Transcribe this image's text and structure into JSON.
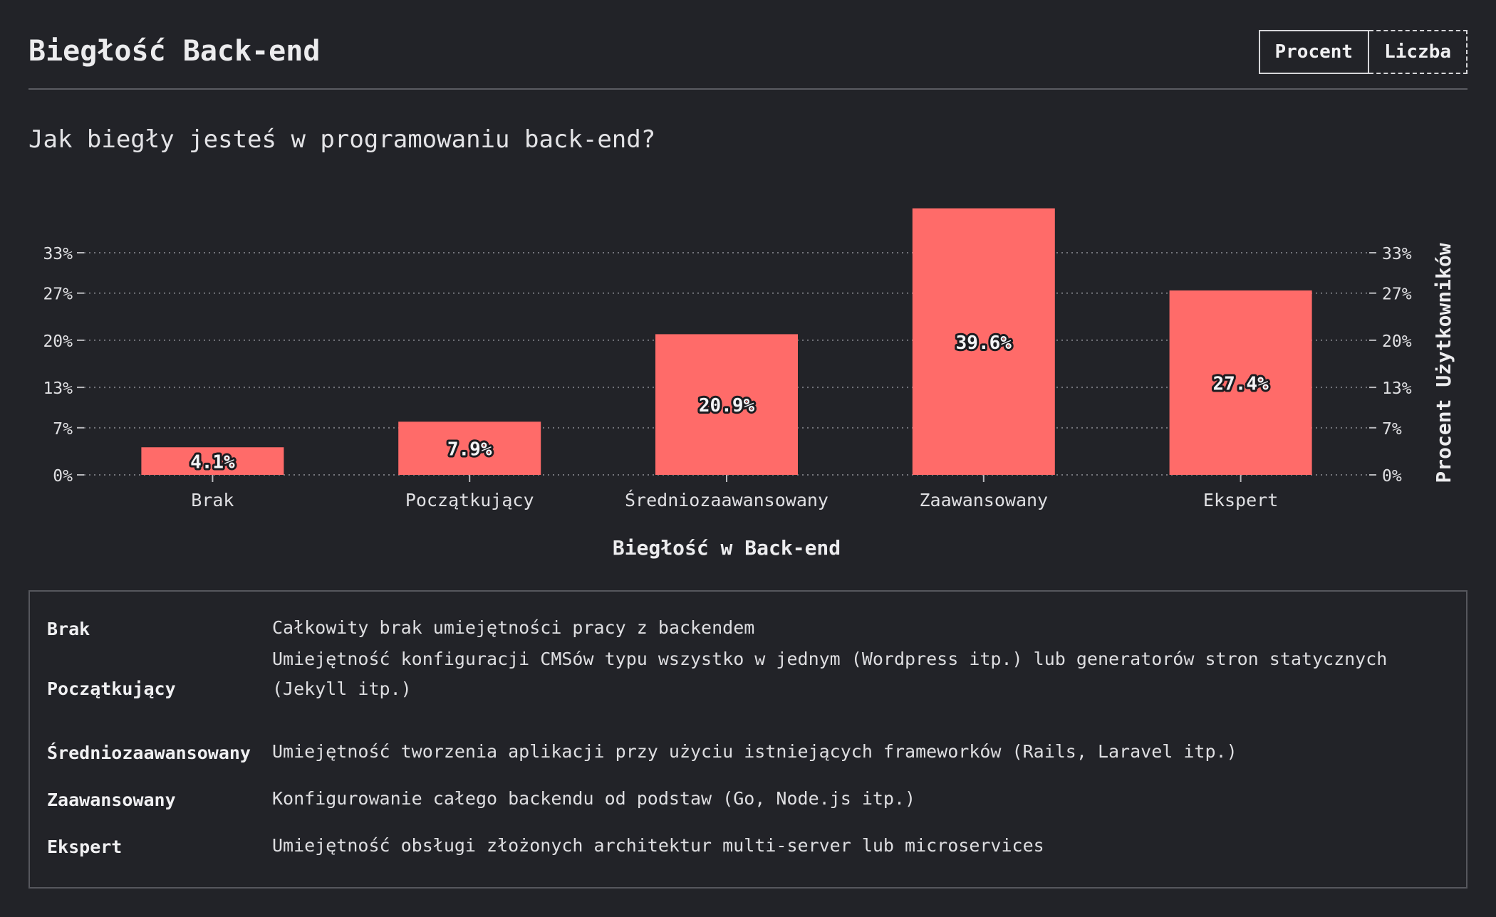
{
  "header": {
    "title": "Biegłość Back-end",
    "toggle": {
      "percent_label": "Procent",
      "count_label": "Liczba",
      "active": "percent"
    }
  },
  "question": "Jak biegły jesteś w programowaniu back-end?",
  "colors": {
    "background": "#222328",
    "bar": "#ff6b69",
    "text": "#e8e8ea",
    "grid": "#75767c"
  },
  "chart_data": {
    "type": "bar",
    "categories": [
      "Brak",
      "Początkujący",
      "Średniozaawansowany",
      "Zaawansowany",
      "Ekspert"
    ],
    "values": [
      4.1,
      7.9,
      20.9,
      39.6,
      27.4
    ],
    "value_labels": [
      "4.1%",
      "7.9%",
      "20.9%",
      "39.6%",
      "27.4%"
    ],
    "ticks": [
      0,
      7,
      13,
      20,
      27,
      33
    ],
    "tick_labels": [
      "0%",
      "7%",
      "13%",
      "20%",
      "27%",
      "33%"
    ],
    "xlabel": "Biegłość w Back-end",
    "ylabel": "Procent Użytkowników",
    "ylim": [
      0,
      40
    ],
    "grid": "dotted horizontal",
    "y_axis_sides": "left and right"
  },
  "legend": [
    {
      "term": "Brak",
      "desc": "Całkowity brak umiejętności pracy z backendem"
    },
    {
      "term": "Początkujący",
      "desc": "Umiejętność konfiguracji CMSów typu wszystko w jednym (Wordpress itp.) lub generatorów stron statycznych (Jekyll itp.)"
    },
    {
      "term": "Średniozaawansowany",
      "desc": "Umiejętność tworzenia aplikacji przy użyciu istniejących frameworków (Rails, Laravel itp.)"
    },
    {
      "term": "Zaawansowany",
      "desc": "Konfigurowanie całego backendu od podstaw (Go, Node.js itp.)"
    },
    {
      "term": "Ekspert",
      "desc": "Umiejętność obsługi złożonych architektur multi-server lub microservices"
    }
  ]
}
